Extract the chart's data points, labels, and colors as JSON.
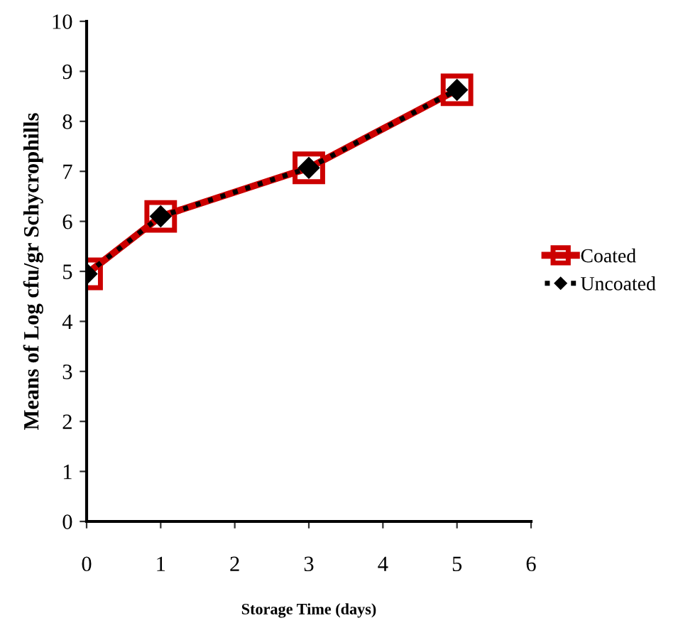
{
  "chart_data": {
    "type": "line",
    "xlabel": "Storage Time (days)",
    "ylabel": "Means of Log cfu/gr Schycrophills",
    "x": [
      0,
      1,
      3,
      5
    ],
    "series": [
      {
        "name": "Coated",
        "color": "#cc0000",
        "values": [
          4.95,
          6.1,
          7.07,
          8.63
        ],
        "marker": "square",
        "line_style": "solid"
      },
      {
        "name": "Uncoated",
        "color": "#000000",
        "values": [
          4.95,
          6.1,
          7.07,
          8.63
        ],
        "marker": "diamond",
        "line_style": "dotted"
      }
    ],
    "xlim": [
      0,
      6
    ],
    "xticks": [
      0,
      1,
      2,
      3,
      4,
      5,
      6
    ],
    "ylim": [
      0,
      10
    ],
    "yticks": [
      0,
      1,
      2,
      3,
      4,
      5,
      6,
      7,
      8,
      9,
      10
    ],
    "grid": false,
    "legend": "right"
  }
}
